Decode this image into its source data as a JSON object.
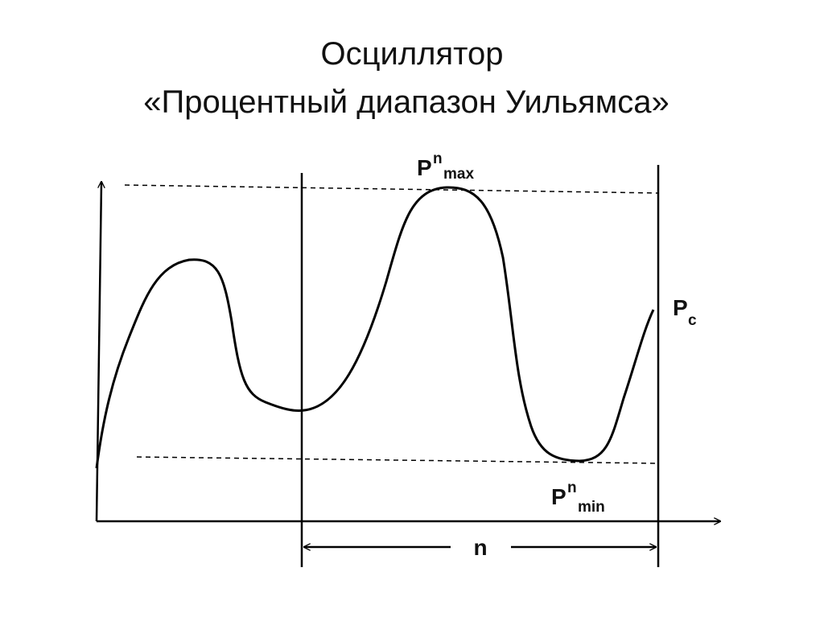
{
  "title": {
    "line1": "Осциллятор",
    "line2": "«Процентный диапазон Уильямса»"
  },
  "labels": {
    "pmax": {
      "base": "P",
      "sup": "n",
      "sub": "max"
    },
    "pc": {
      "base": "P",
      "sub": "c"
    },
    "pmin": {
      "base": "P",
      "sup": "n",
      "sub": "min"
    },
    "period": "n"
  }
}
